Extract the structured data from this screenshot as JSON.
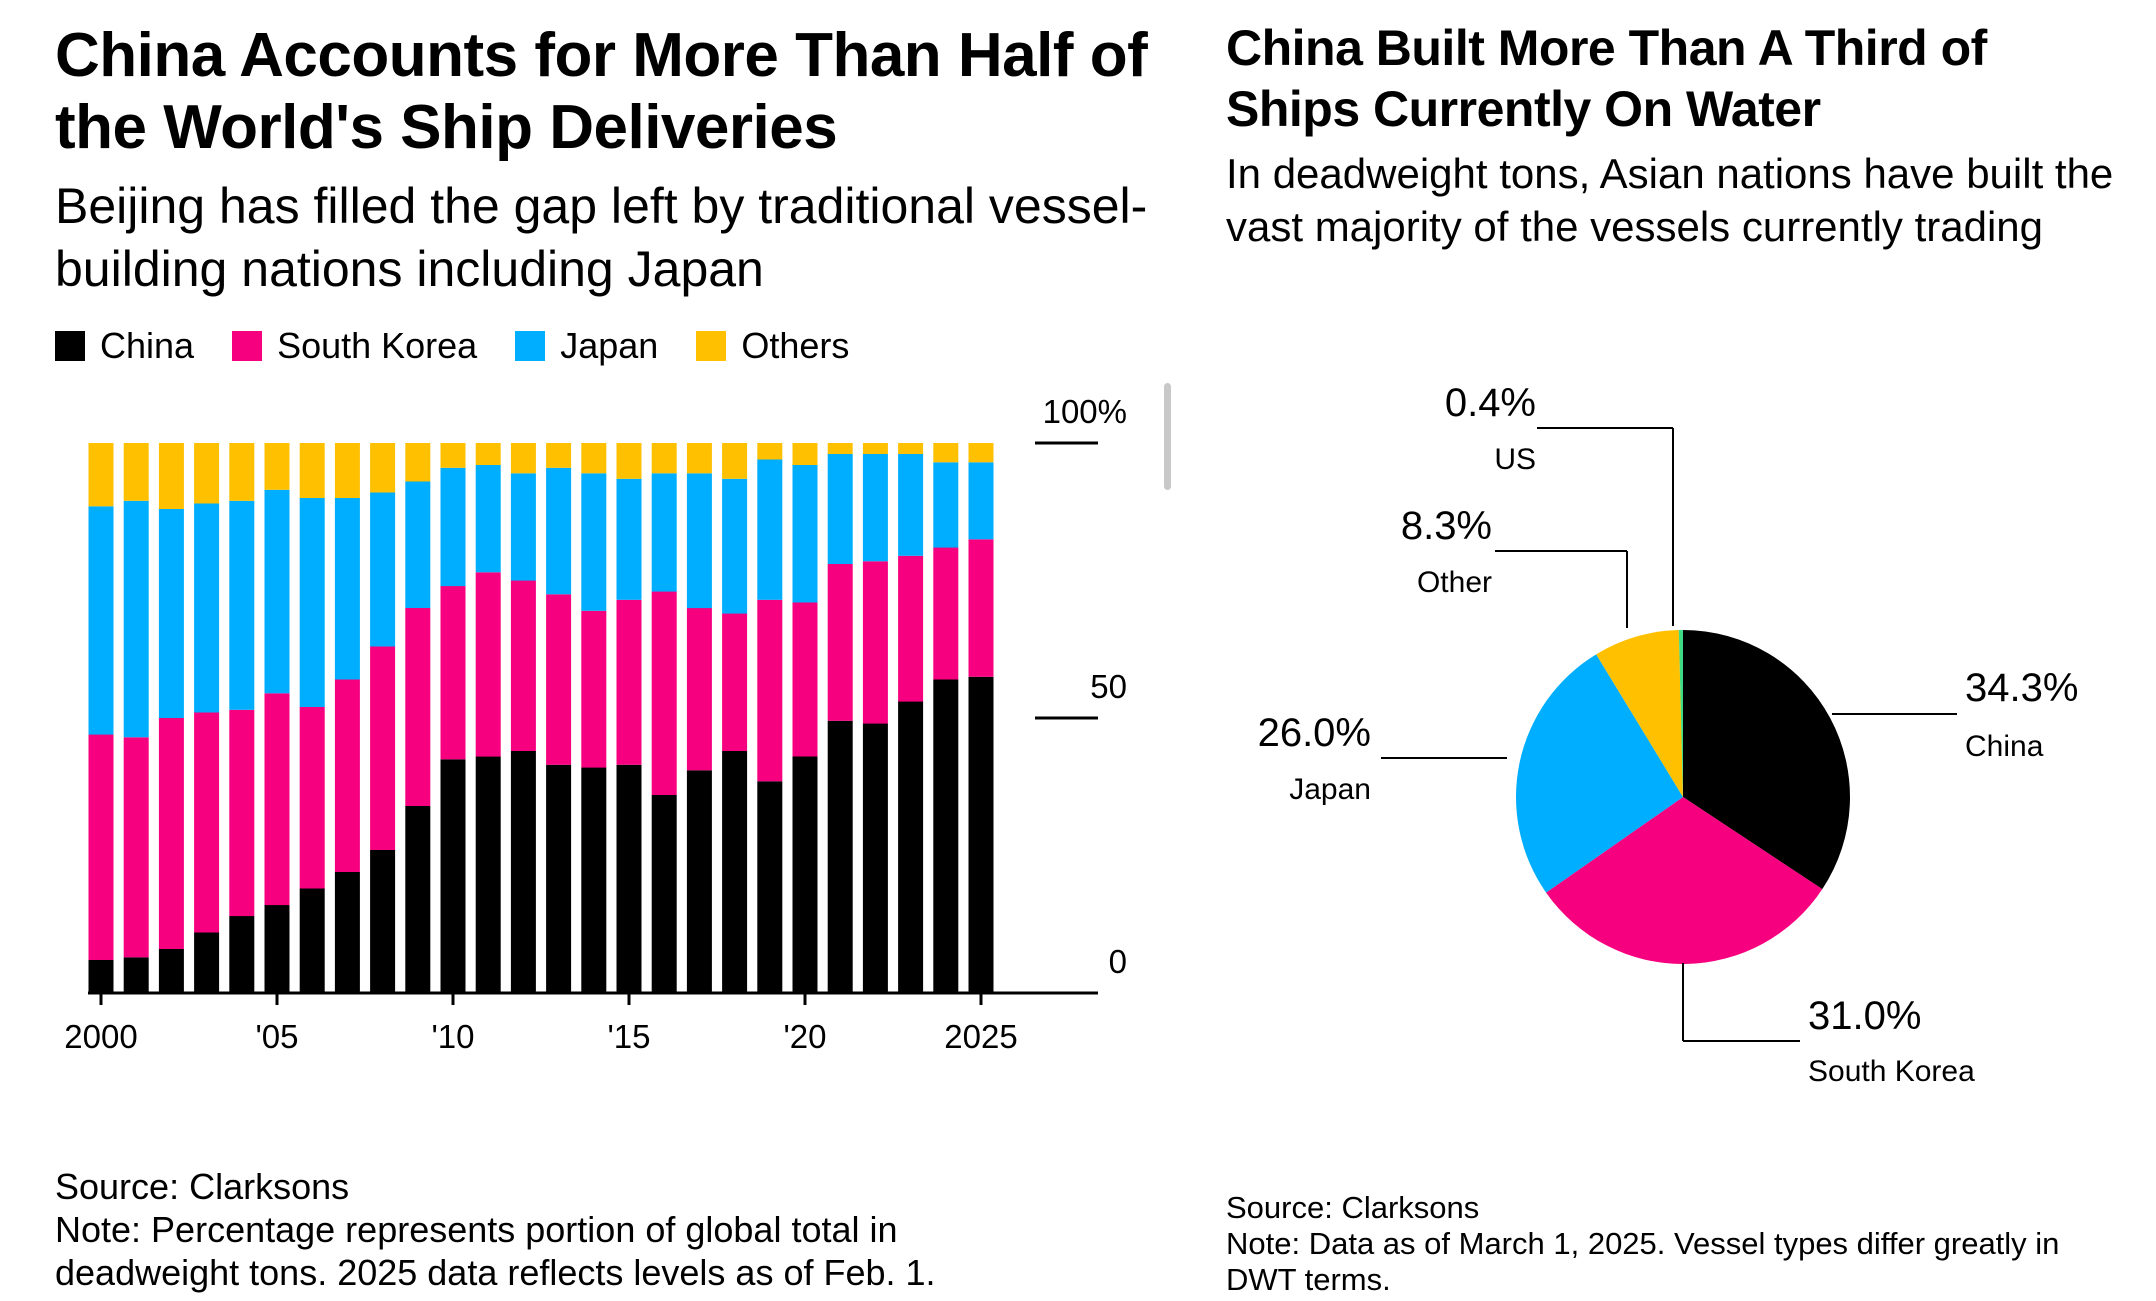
{
  "left": {
    "title": "China Accounts for More Than Half of the World's Ship Deliveries",
    "subtitle": "Beijing has filled the gap left by traditional vessel-building nations including Japan",
    "source": "Source: Clarksons",
    "note": "Note: Percentage represents portion of global total in deadweight tons. 2025 data reflects levels as of Feb. 1."
  },
  "right": {
    "title": "China Built More Than A Third of Ships Currently On Water",
    "subtitle": "In deadweight tons, Asian nations have built the vast majority of the vessels currently trading",
    "source": "Source: Clarksons",
    "note": "Note: Data as of March 1, 2025. Vessel types differ greatly in DWT terms."
  },
  "colors": {
    "China": "#000000",
    "South Korea": "#f7007f",
    "Japan": "#00aeff",
    "Others": "#ffc000",
    "US": "#3ddc84"
  },
  "chart_data": [
    {
      "type": "bar",
      "stacked": true,
      "legend_placement": "top-left",
      "categories": [
        "2000",
        "2001",
        "2002",
        "2003",
        "2004",
        "2005",
        "2006",
        "2007",
        "2008",
        "2009",
        "2010",
        "2011",
        "2012",
        "2013",
        "2014",
        "2015",
        "2016",
        "2017",
        "2018",
        "2019",
        "2020",
        "2021",
        "2022",
        "2023",
        "2024",
        "2025"
      ],
      "x_tick_labels": [
        "2000",
        "'05",
        "'10",
        "'15",
        "'20",
        "2025"
      ],
      "x_tick_years": [
        2000,
        2005,
        2010,
        2015,
        2020,
        2025
      ],
      "y_tick_labels": [
        "0",
        "50",
        "100%"
      ],
      "y_ticks": [
        0,
        50,
        100
      ],
      "ylim": [
        0,
        100
      ],
      "grid": false,
      "series": [
        {
          "name": "China",
          "values": [
            6,
            6.5,
            8,
            11,
            14,
            16,
            19,
            22,
            26,
            34,
            42.5,
            43,
            44,
            41.5,
            41,
            41.5,
            36,
            40.5,
            44,
            38.5,
            43,
            49.5,
            49,
            53,
            57,
            57.5
          ]
        },
        {
          "name": "South Korea",
          "values": [
            41,
            40,
            42,
            40,
            37.5,
            38.5,
            33,
            35,
            37,
            36,
            31.5,
            33.5,
            31,
            31,
            28.5,
            30,
            37,
            29.5,
            25,
            33,
            28,
            28.5,
            29.5,
            26.5,
            24,
            25
          ]
        },
        {
          "name": "Japan",
          "values": [
            41.5,
            43,
            38,
            38,
            38,
            37,
            38,
            33,
            28,
            23,
            21.5,
            19.5,
            19.5,
            23,
            25,
            22,
            21.5,
            24.5,
            24.5,
            25.5,
            25,
            20,
            19.5,
            18.5,
            15.5,
            14
          ]
        },
        {
          "name": "Others",
          "values": [
            11.5,
            10.5,
            12,
            11,
            10.5,
            8.5,
            10,
            10,
            9,
            7,
            4.5,
            4,
            5.5,
            4.5,
            5.5,
            6.5,
            5.5,
            5.5,
            6.5,
            3,
            4,
            2,
            2,
            2,
            3.5,
            3.5
          ]
        }
      ]
    },
    {
      "type": "pie",
      "slices": [
        {
          "label": "China",
          "value": 34.3,
          "value_label": "34.3%"
        },
        {
          "label": "South Korea",
          "value": 31.0,
          "value_label": "31.0%"
        },
        {
          "label": "Japan",
          "value": 26.0,
          "value_label": "26.0%"
        },
        {
          "label": "Other",
          "value": 8.3,
          "value_label": "8.3%"
        },
        {
          "label": "US",
          "value": 0.4,
          "value_label": "0.4%"
        }
      ]
    }
  ]
}
